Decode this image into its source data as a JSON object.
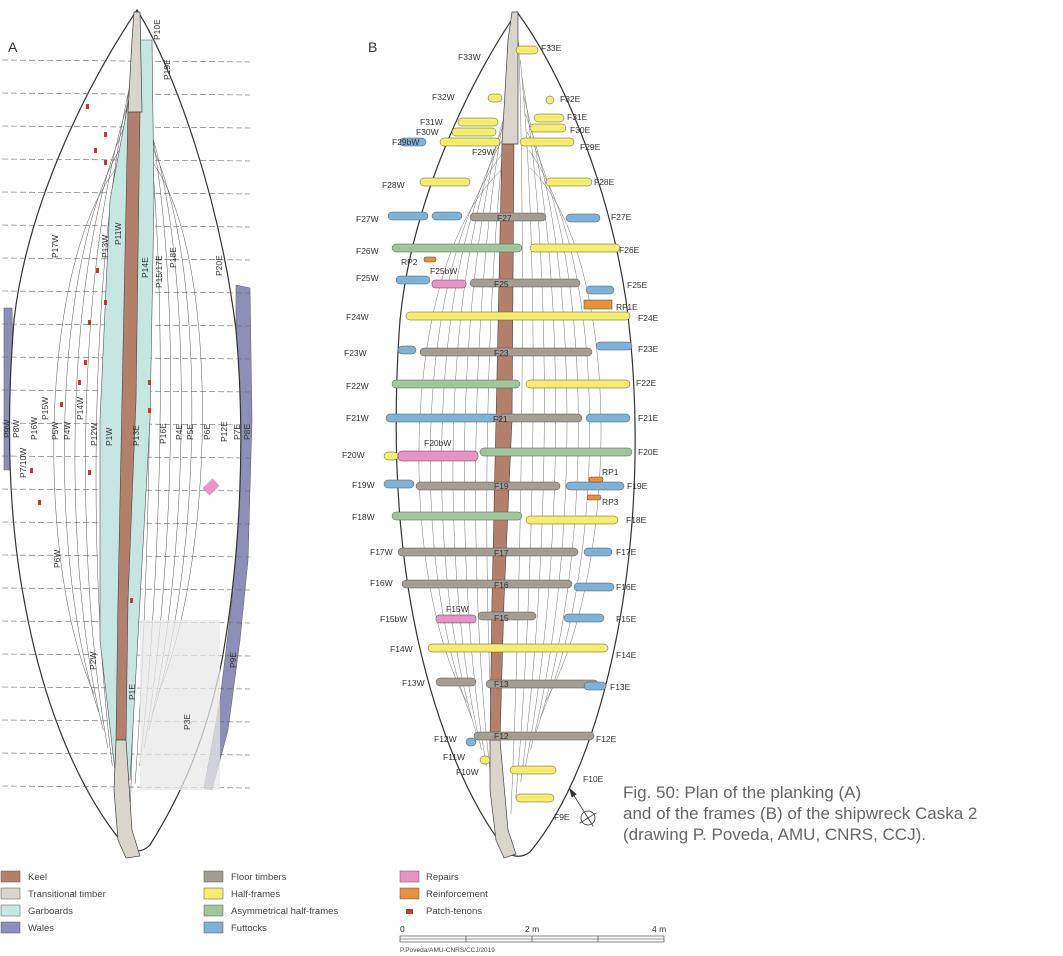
{
  "panels": {
    "a": "A",
    "b": "B"
  },
  "colors": {
    "keel": "#b5806b",
    "transitional": "#d9d4cc",
    "garboards": "#c6e6e1",
    "wales": "#8d8fb8",
    "floor": "#a49d93",
    "half": "#f5ee6a",
    "asym": "#9fc79b",
    "futtock": "#7db3d8",
    "repair": "#e994c4",
    "reinforcement": "#e8923a",
    "tenon": "#c0392b"
  },
  "planks": [
    "P10E",
    "P19E",
    "P17W",
    "P13W",
    "P11W",
    "P14E",
    "P15/17E",
    "P18E",
    "P20E",
    "P9W",
    "P8W",
    "P16W",
    "P7/10W",
    "P15W",
    "P5W",
    "P4W",
    "P14W",
    "P12W",
    "P1W",
    "P13E",
    "P16E",
    "P4E",
    "P5E",
    "P6E",
    "P12E",
    "P7E",
    "P8E",
    "P6W",
    "P2W",
    "P1E",
    "P3E",
    "P9E"
  ],
  "frames": {
    "F33W": "F33W",
    "F33E": "F33E",
    "F32W": "F32W",
    "F32E": "F32E",
    "F31W": "F31W",
    "F31E": "F31E",
    "F30W": "F30W",
    "F30E": "F30E",
    "F29bW": "F29bW",
    "F29W": "F29W",
    "F29E": "F29E",
    "F28W": "F28W",
    "F28E": "F28E",
    "F27W": "F27W",
    "F27": "F27",
    "F27E": "F27E",
    "F26W": "F26W",
    "F26E": "F26E",
    "RP2": "RP2",
    "F25bW": "F25bW",
    "F25W": "F25W",
    "F25": "F25",
    "F25E": "F25E",
    "RF1E": "RF1E",
    "F24W": "F24W",
    "F24E": "F24E",
    "F23W": "F23W",
    "F23": "F23",
    "F23E": "F23E",
    "F22W": "F22W",
    "F22E": "F22E",
    "F21W": "F21W",
    "F21": "F21",
    "F21E": "F21E",
    "F20bW": "F20bW",
    "F20W": "F20W",
    "F20E": "F20E",
    "RP1": "RP1",
    "F19W": "F19W",
    "F19": "F19",
    "F19E": "F19E",
    "RP3": "RP3",
    "F18W": "F18W",
    "F18E": "F18E",
    "F17W": "F17W",
    "F17": "F17",
    "F17E": "F17E",
    "F16W": "F16W",
    "F16": "F16",
    "F16E": "F16E",
    "F15W": "F15W",
    "F15bW": "F15bW",
    "F15": "F15",
    "F15E": "F15E",
    "F14W": "F14W",
    "F14E": "F14E",
    "F13W": "F13W",
    "F13": "F13",
    "F13E": "F13E",
    "F12W": "F12W",
    "F12": "F12",
    "F12E": "F12E",
    "F11W": "F11W",
    "F10W": "F10W",
    "F10E": "F10E",
    "F9E": "F9E"
  },
  "legend_a": {
    "keel": "Keel",
    "transitional": "Transitional timber",
    "garboards": "Garboards",
    "wales": "Wales",
    "floor": "Floor timbers",
    "half": "Half-frames",
    "asym": "Asymmetrical half-frames",
    "futtock": "Futtocks"
  },
  "legend_b": {
    "repair": "Repairs",
    "reinforcement": "Reinforcement",
    "tenon": "Patch-tenons"
  },
  "scale": {
    "zero": "0",
    "mid": "2 m",
    "end": "4 m",
    "credit": "P.Poveda/AMU-CNRS/CCJ/2019"
  },
  "caption": {
    "line1": "Fig. 50: Plan of the planking (A)",
    "line2": "and of the frames (B) of the shipwreck Caska 2",
    "line3": "(drawing P. Poveda, AMU, CNRS, CCJ)."
  }
}
